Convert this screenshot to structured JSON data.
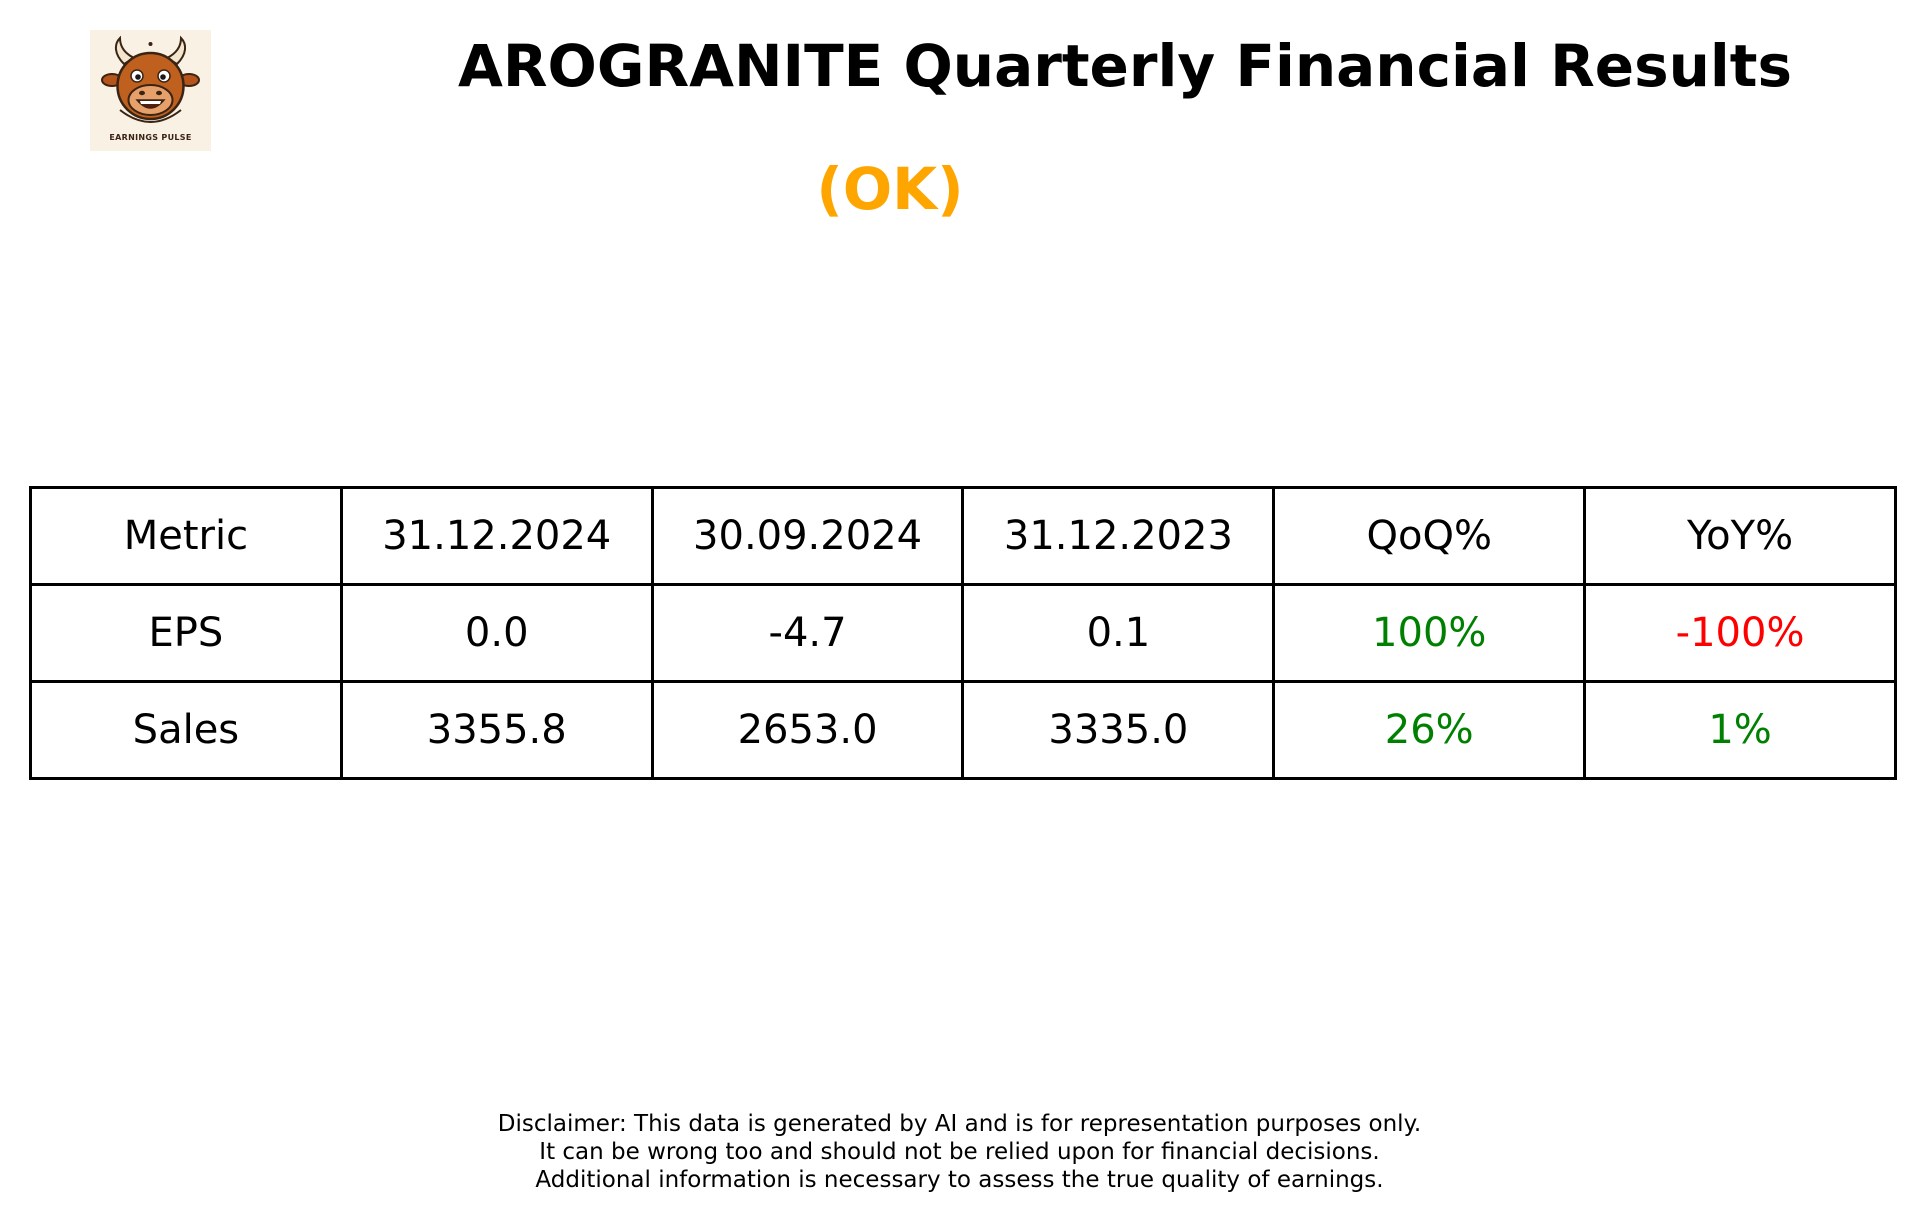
{
  "logo": {
    "icon": "bull-mascot-icon",
    "text": "EARNINGS PULSE"
  },
  "header": {
    "title": "AROGRANITE Quarterly Financial Results",
    "status": "(OK)",
    "status_color": "#ffa500"
  },
  "colors": {
    "positive": "#008000",
    "negative": "#ff0000",
    "neutral": "#000000"
  },
  "table": {
    "columns": [
      "Metric",
      "31.12.2024",
      "30.09.2024",
      "31.12.2023",
      "QoQ%",
      "YoY%"
    ],
    "rows": [
      {
        "metric": "EPS",
        "values": [
          "0.0",
          "-4.7",
          "0.1"
        ],
        "qoq": "100%",
        "qoq_trend": "positive",
        "yoy": "-100%",
        "yoy_trend": "negative"
      },
      {
        "metric": "Sales",
        "values": [
          "3355.8",
          "2653.0",
          "3335.0"
        ],
        "qoq": "26%",
        "qoq_trend": "positive",
        "yoy": "1%",
        "yoy_trend": "positive"
      }
    ]
  },
  "disclaimer": {
    "lines": [
      "Disclaimer: This data is generated by AI and is for representation purposes only.",
      "It can be wrong too and should not be relied upon for financial decisions.",
      "Additional information is necessary to assess the true quality of earnings."
    ]
  }
}
